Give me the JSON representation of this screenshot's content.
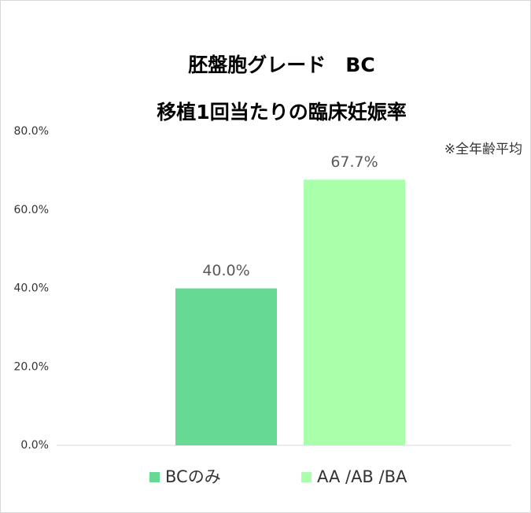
{
  "chart_data": {
    "type": "bar",
    "title": "胚盤胞グレード　BC",
    "subtitle": "移植1回当たりの臨床妊娠率",
    "annotation": "※全年齢平均",
    "categories": [
      null
    ],
    "series": [
      {
        "name": "BCのみ",
        "color": "#66d994",
        "values": [
          40.0
        ],
        "value_labels": [
          "40.0%"
        ]
      },
      {
        "name": "AA /AB /BA",
        "color": "#aaffaa",
        "values": [
          67.7
        ],
        "value_labels": [
          "67.7%"
        ]
      }
    ],
    "ylim": [
      0,
      80
    ],
    "yticks": [
      {
        "value": 0,
        "label": "0.0%"
      },
      {
        "value": 20,
        "label": "20.0%"
      },
      {
        "value": 40,
        "label": "40.0%"
      },
      {
        "value": 60,
        "label": "60.0%"
      },
      {
        "value": 80,
        "label": "80.0%"
      }
    ],
    "grid": false
  }
}
